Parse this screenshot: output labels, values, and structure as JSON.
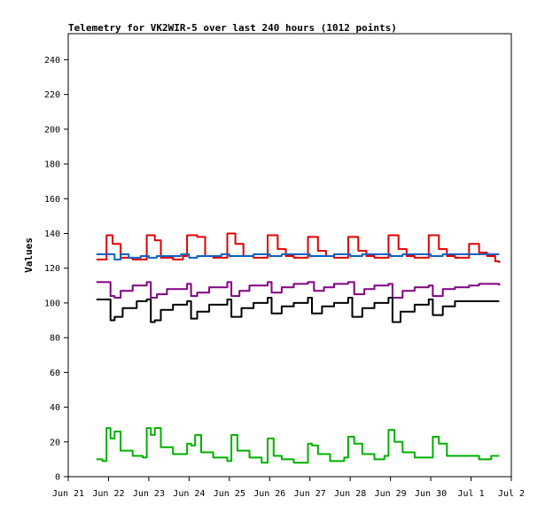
{
  "chart_data": {
    "type": "line",
    "title": "Telemetry for VK2WIR-5 over last 240 hours (1012 points)",
    "xlabel": "",
    "ylabel": "Values",
    "ylim": [
      0,
      255
    ],
    "xlim": [
      0,
      11
    ],
    "yticks": [
      0,
      20,
      40,
      60,
      80,
      100,
      120,
      140,
      160,
      180,
      200,
      220,
      240
    ],
    "xtick_labels": [
      "Jun 21",
      "Jun 22",
      "Jun 23",
      "Jun 24",
      "Jun 25",
      "Jun 26",
      "Jun 27",
      "Jun 28",
      "Jun 29",
      "Jun 30",
      "Jul 1",
      "Jul 2"
    ],
    "grid": false,
    "legend": "none",
    "series": [
      {
        "color": "#e00000",
        "x": [
          0.7,
          0.88,
          0.95,
          1.1,
          1.3,
          1.6,
          1.85,
          1.95,
          2.15,
          2.3,
          2.6,
          2.85,
          2.95,
          3.2,
          3.4,
          3.6,
          3.8,
          3.95,
          4.15,
          4.35,
          4.6,
          4.8,
          4.95,
          5.2,
          5.4,
          5.6,
          5.85,
          5.95,
          6.2,
          6.4,
          6.6,
          6.85,
          6.95,
          7.2,
          7.4,
          7.6,
          7.85,
          7.95,
          8.2,
          8.4,
          8.6,
          8.85,
          8.95,
          9.2,
          9.4,
          9.6,
          9.85,
          9.95,
          10.2,
          10.4,
          10.6,
          10.7
        ],
        "y": [
          125,
          125,
          139,
          134,
          126,
          125,
          125,
          139,
          136,
          126,
          125,
          127,
          139,
          138,
          127,
          126,
          126,
          140,
          134,
          127,
          126,
          126,
          139,
          131,
          127,
          126,
          126,
          138,
          130,
          127,
          126,
          126,
          138,
          130,
          127,
          126,
          126,
          139,
          131,
          127,
          126,
          126,
          139,
          131,
          127,
          126,
          126,
          134,
          129,
          127,
          124,
          123
        ]
      },
      {
        "color": "#1060c0",
        "x": [
          0.7,
          1.0,
          1.15,
          1.3,
          1.5,
          1.8,
          2.0,
          2.2,
          2.4,
          2.8,
          3.0,
          3.2,
          3.5,
          3.8,
          4.0,
          4.3,
          4.6,
          5.0,
          5.3,
          5.6,
          6.0,
          6.3,
          6.6,
          7.0,
          7.3,
          7.6,
          8.0,
          8.3,
          8.6,
          9.0,
          9.3,
          9.6,
          10.0,
          10.4,
          10.7
        ],
        "y": [
          128,
          128,
          125,
          128,
          126,
          127,
          126,
          127,
          127,
          128,
          126,
          127,
          127,
          128,
          127,
          127,
          128,
          127,
          128,
          128,
          127,
          127,
          128,
          127,
          128,
          128,
          127,
          128,
          128,
          127,
          128,
          128,
          128,
          128,
          128
        ]
      },
      {
        "color": "#800080",
        "x": [
          0.7,
          0.95,
          1.05,
          1.15,
          1.3,
          1.6,
          1.95,
          2.05,
          2.2,
          2.45,
          2.95,
          3.05,
          3.2,
          3.5,
          3.95,
          4.05,
          4.25,
          4.5,
          4.95,
          5.05,
          5.3,
          5.6,
          5.95,
          6.1,
          6.35,
          6.6,
          6.95,
          7.1,
          7.35,
          7.6,
          7.95,
          8.05,
          8.3,
          8.6,
          8.95,
          9.05,
          9.3,
          9.6,
          9.95,
          10.2,
          10.45,
          10.7
        ],
        "y": [
          112,
          112,
          104,
          103,
          107,
          110,
          112,
          103,
          105,
          108,
          111,
          104,
          106,
          109,
          112,
          104,
          107,
          110,
          112,
          106,
          109,
          111,
          112,
          107,
          109,
          111,
          112,
          105,
          108,
          110,
          111,
          103,
          107,
          109,
          110,
          104,
          108,
          109,
          110,
          111,
          111,
          110
        ]
      },
      {
        "color": "#000000",
        "x": [
          0.7,
          0.95,
          1.05,
          1.15,
          1.35,
          1.7,
          1.95,
          2.05,
          2.15,
          2.3,
          2.6,
          2.95,
          3.05,
          3.2,
          3.5,
          3.95,
          4.05,
          4.3,
          4.6,
          4.95,
          5.05,
          5.3,
          5.6,
          5.95,
          6.05,
          6.3,
          6.6,
          6.95,
          7.05,
          7.3,
          7.6,
          7.95,
          8.05,
          8.25,
          8.6,
          8.95,
          9.05,
          9.3,
          9.6,
          10.0,
          10.4,
          10.7
        ],
        "y": [
          102,
          102,
          90,
          92,
          97,
          101,
          102,
          89,
          90,
          96,
          99,
          101,
          91,
          95,
          99,
          102,
          92,
          97,
          100,
          103,
          94,
          98,
          100,
          103,
          94,
          98,
          100,
          103,
          92,
          97,
          100,
          103,
          89,
          95,
          99,
          102,
          93,
          98,
          101,
          101,
          101,
          101
        ]
      },
      {
        "color": "#00b000",
        "x": [
          0.7,
          0.85,
          0.95,
          1.05,
          1.15,
          1.3,
          1.6,
          1.85,
          1.95,
          2.05,
          2.15,
          2.3,
          2.6,
          2.85,
          2.95,
          3.05,
          3.15,
          3.3,
          3.6,
          3.95,
          4.05,
          4.2,
          4.5,
          4.8,
          4.95,
          5.1,
          5.3,
          5.6,
          5.95,
          6.05,
          6.2,
          6.5,
          6.85,
          6.95,
          7.1,
          7.3,
          7.6,
          7.85,
          7.95,
          8.1,
          8.3,
          8.6,
          8.95,
          9.05,
          9.2,
          9.4,
          9.7,
          10.2,
          10.5,
          10.7
        ],
        "y": [
          10,
          9,
          28,
          22,
          26,
          15,
          12,
          11,
          28,
          24,
          28,
          17,
          13,
          13,
          19,
          18,
          24,
          14,
          11,
          9,
          24,
          15,
          11,
          8,
          22,
          12,
          10,
          8,
          19,
          18,
          13,
          9,
          11,
          23,
          19,
          13,
          10,
          12,
          27,
          20,
          14,
          11,
          11,
          23,
          19,
          12,
          12,
          10,
          12,
          12
        ]
      }
    ]
  }
}
